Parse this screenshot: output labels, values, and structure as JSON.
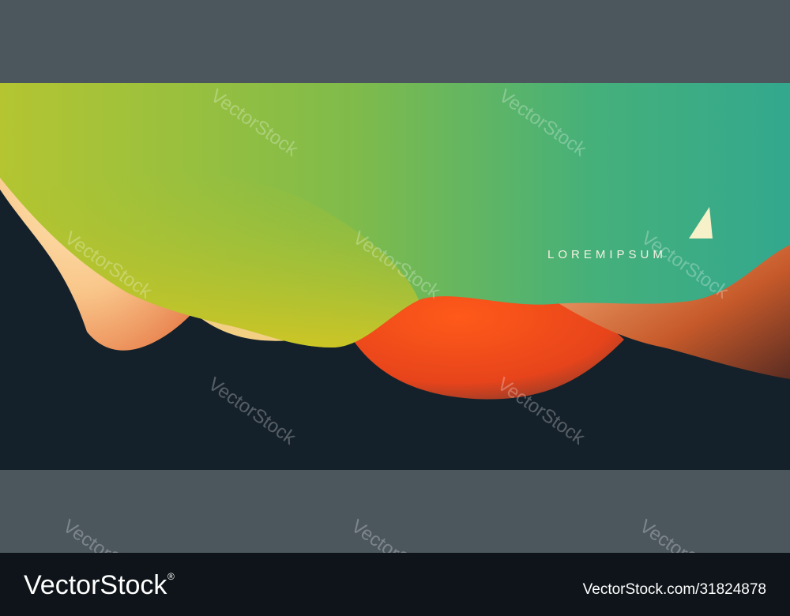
{
  "art": {
    "headline": "LOREMIPSUM"
  },
  "watermark": "VectorStock",
  "footer": {
    "brand": "VectorStock",
    "registered": "®",
    "image_id": "VectorStock.com/31824878"
  }
}
